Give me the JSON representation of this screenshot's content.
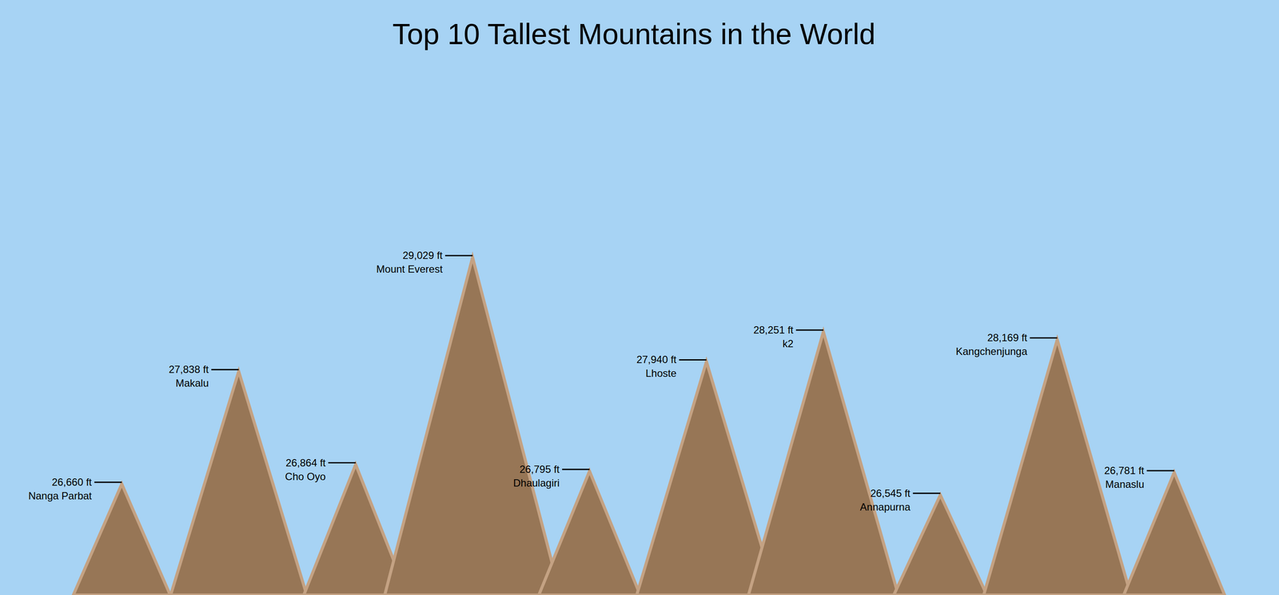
{
  "chart_data": {
    "type": "bar",
    "title": "Top 10 Tallest Mountains in the World",
    "categories": [
      "Nanga Parbat",
      "Makalu",
      "Cho Oyo",
      "Mount Everest",
      "Dhaulagiri",
      "Lhoste",
      "k2",
      "Annapurna",
      "Kangchenjunga",
      "Manaslu"
    ],
    "values": [
      26660,
      27838,
      26864,
      29029,
      26795,
      27940,
      28251,
      26545,
      28169,
      26781
    ],
    "value_labels": [
      "26,660 ft",
      "27,838 ft",
      "26,864 ft",
      "29,029 ft",
      "26,795 ft",
      "27,940 ft",
      "28,251 ft",
      "26,545 ft",
      "28,169 ft",
      "26,781 ft"
    ],
    "color": "#977656",
    "ylim": [
      25500,
      30500
    ],
    "tick_labels": false,
    "data_labels": true
  }
}
